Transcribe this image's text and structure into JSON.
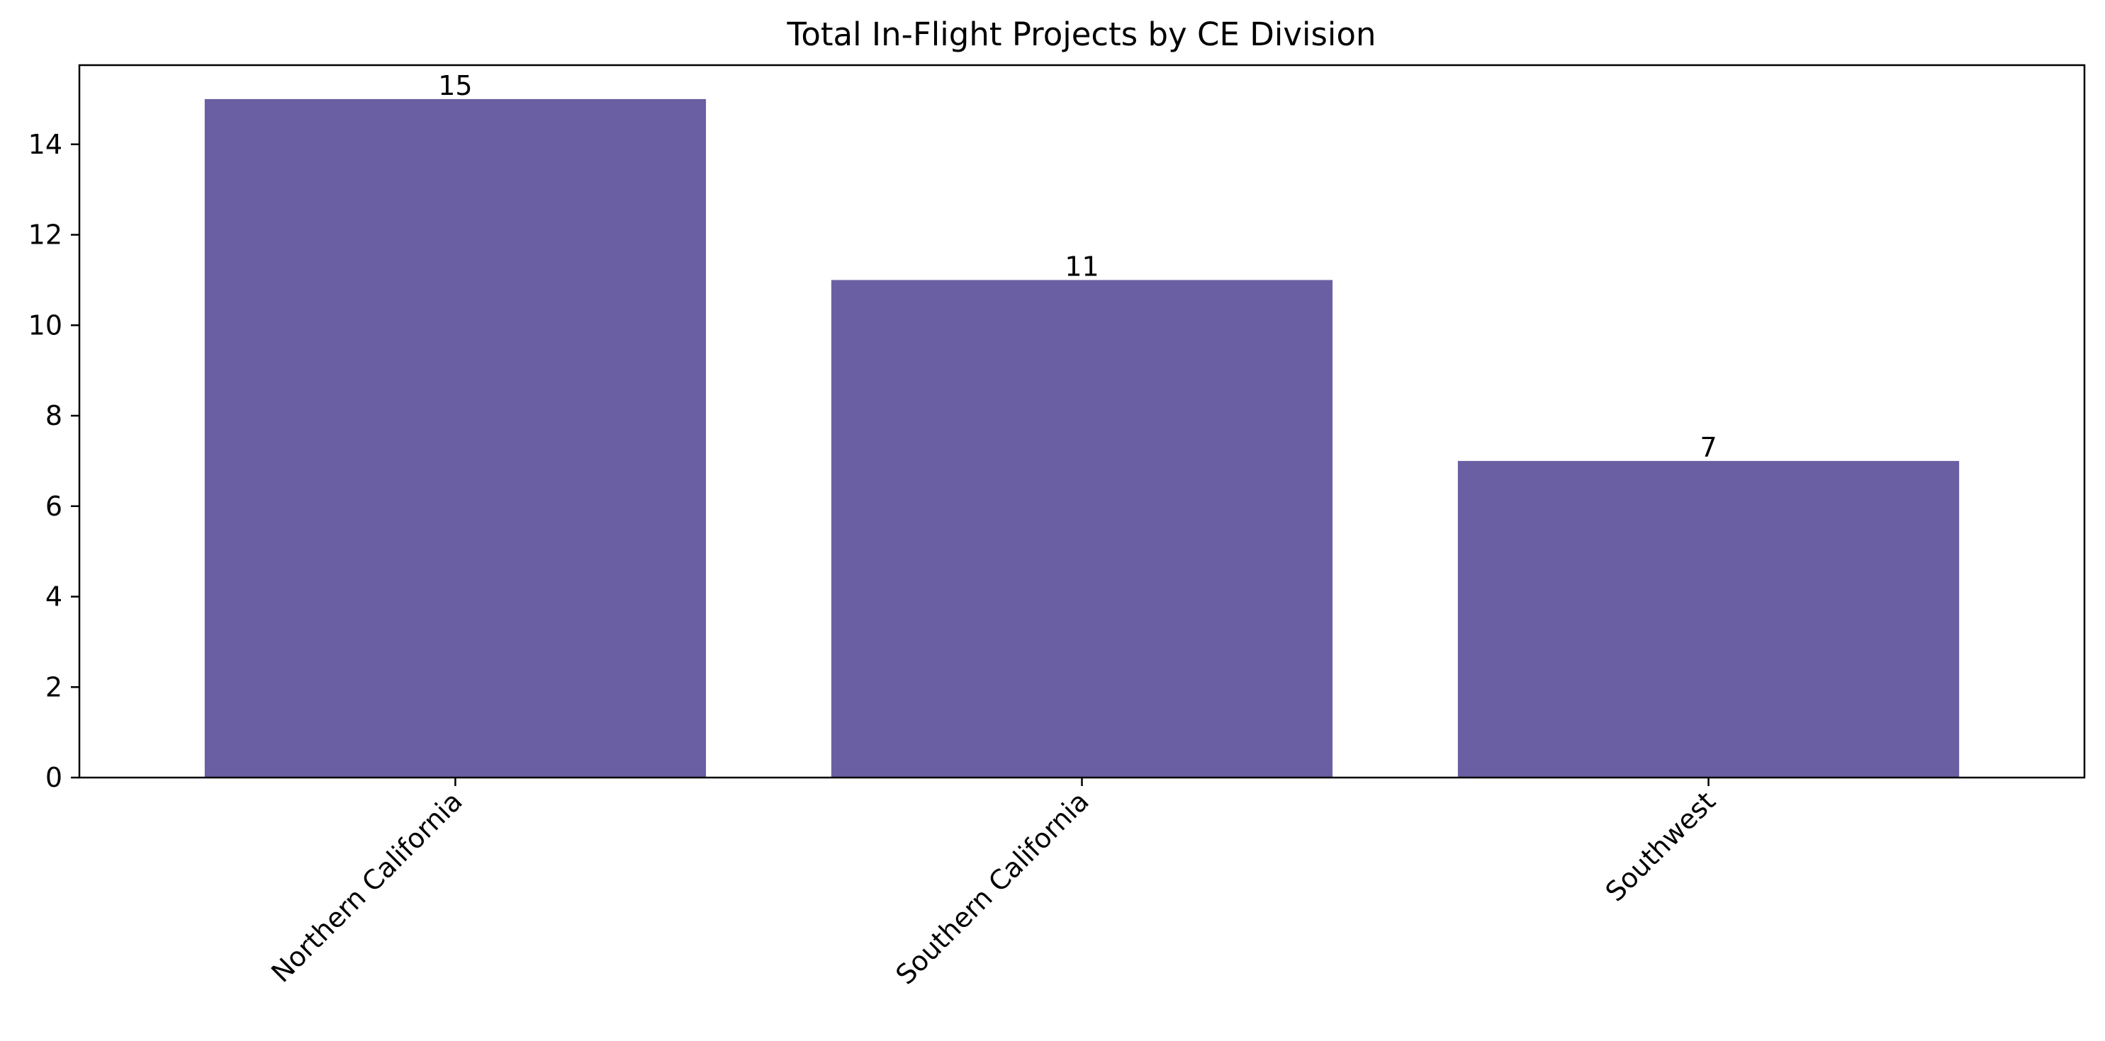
{
  "chart_data": {
    "type": "bar",
    "title": "Total In-Flight Projects by CE Division",
    "xlabel": "",
    "ylabel": "",
    "categories": [
      "Northern California",
      "Southern California",
      "Southwest"
    ],
    "values": [
      15,
      11,
      7
    ],
    "data_labels": [
      "15",
      "11",
      "7"
    ],
    "ylim": [
      0,
      15.75
    ],
    "yticks": [
      0,
      2,
      4,
      6,
      8,
      10,
      12,
      14
    ],
    "ytick_labels": [
      "0",
      "2",
      "4",
      "6",
      "8",
      "10",
      "12",
      "14"
    ],
    "bar_color": "#6b5fa3",
    "grid": false,
    "legend": "none",
    "xtick_rotation_deg": 45
  }
}
